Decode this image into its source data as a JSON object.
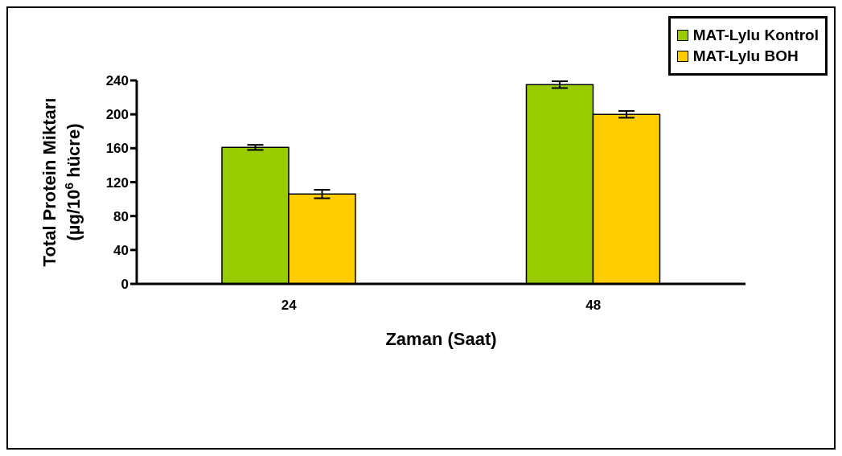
{
  "chart_data": {
    "type": "bar",
    "xlabel": "Zaman (Saat)",
    "ylabel": "Total Protein Miktarı\n(µg/10$^{6}$ hücre)",
    "categories": [
      "24",
      "48"
    ],
    "series": [
      {
        "name": "MAT-Lylu Kontrol",
        "color": "#99cc00",
        "values": [
          161,
          235
        ],
        "errors": [
          3,
          4
        ]
      },
      {
        "name": "MAT-Lylu BOH",
        "color": "#ffcc00",
        "values": [
          106,
          200
        ],
        "errors": [
          5,
          4
        ]
      }
    ],
    "ylim": [
      0,
      240
    ],
    "yticks": [
      0,
      40,
      80,
      120,
      160,
      200,
      240
    ],
    "grid": false,
    "legend": "top right"
  }
}
